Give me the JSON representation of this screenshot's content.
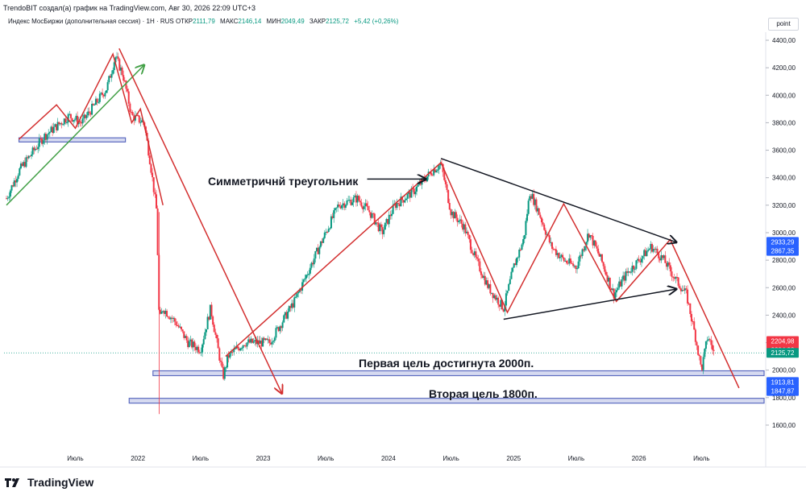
{
  "header": {
    "attribution": "TrendoBIT создал(а) график на TradingView.com, Авг 30, 2026 22:09 UTC+3"
  },
  "legend": {
    "symbol": "Индекс МосБиржи (дополнительная сессия) · 1Н · RUS",
    "open_label": "ОТКР",
    "open": "2111,79",
    "high_label": "МАКС",
    "high": "2146,14",
    "low_label": "МИН",
    "low": "2049,49",
    "close_label": "ЗАКР",
    "close": "2125,72",
    "change": "+5,42 (+0,26%)"
  },
  "scale_button": "point",
  "footer": {
    "logo_text": "TradingView"
  },
  "annotations": {
    "triangle": "Симметричнй треугольник",
    "target1": "Первая цель достигнута 2000п.",
    "target2": "Вторая цель 1800п."
  },
  "price_badges": [
    {
      "label": "2933,29",
      "value": 2933.29,
      "color": "#2962ff"
    },
    {
      "label": "2867,35",
      "value": 2867.35,
      "color": "#2962ff"
    },
    {
      "label": "2204,98",
      "value": 2212,
      "color": "#f23645"
    },
    {
      "label": "2204,98",
      "value": 2148,
      "color": "#f23645"
    },
    {
      "label": "2125,72",
      "value": 2125.72,
      "color": "#089981"
    },
    {
      "label": "1913,81",
      "value": 1913.81,
      "color": "#2962ff"
    },
    {
      "label": "1847,87",
      "value": 1847.87,
      "color": "#2962ff"
    }
  ],
  "colors": {
    "up": "#089981",
    "down": "#f23645",
    "trend_red": "#d32f2f",
    "trend_green": "#43a047",
    "zone_fill": "#c5cae9",
    "zone_border": "#5c6bc0"
  },
  "chart_data": {
    "type": "candlestick",
    "title": "Индекс МосБиржи (дополнительная сессия) · 1Н · RUS",
    "ylim": [
      1400,
      4520
    ],
    "y_ticks": [
      {
        "value": 4400,
        "label": "4400,00"
      },
      {
        "value": 4200,
        "label": "4200,00"
      },
      {
        "value": 4000,
        "label": "4000,00"
      },
      {
        "value": 3800,
        "label": "3800,00"
      },
      {
        "value": 3600,
        "label": "3600,00"
      },
      {
        "value": 3400,
        "label": "3400,00"
      },
      {
        "value": 3200,
        "label": "3200,00"
      },
      {
        "value": 3000,
        "label": "3000,00"
      },
      {
        "value": 2800,
        "label": "2800,00"
      },
      {
        "value": 2600,
        "label": "2600,00"
      },
      {
        "value": 2400,
        "label": "2400,00"
      },
      {
        "value": 2200,
        "label": "2200,00"
      },
      {
        "value": 2000,
        "label": "2000,00"
      },
      {
        "value": 1800,
        "label": "1800,00"
      },
      {
        "value": 1600,
        "label": "1600,00"
      }
    ],
    "x_ticks": [
      {
        "t": 2021.5,
        "label": "Июль"
      },
      {
        "t": 2022.0,
        "label": "2022"
      },
      {
        "t": 2022.5,
        "label": "Июль"
      },
      {
        "t": 2023.0,
        "label": "2023"
      },
      {
        "t": 2023.5,
        "label": "Июль"
      },
      {
        "t": 2024.0,
        "label": "2024"
      },
      {
        "t": 2024.5,
        "label": "Июль"
      },
      {
        "t": 2025.0,
        "label": "2025"
      },
      {
        "t": 2025.5,
        "label": "Июль"
      },
      {
        "t": 2026.0,
        "label": "2026"
      },
      {
        "t": 2026.5,
        "label": "Июль"
      }
    ],
    "price_path": [
      [
        2020.95,
        3250
      ],
      [
        2021.05,
        3450
      ],
      [
        2021.25,
        3700
      ],
      [
        2021.45,
        3850
      ],
      [
        2021.55,
        3800
      ],
      [
        2021.75,
        4050
      ],
      [
        2021.82,
        4280
      ],
      [
        2021.88,
        4150
      ],
      [
        2021.95,
        3850
      ],
      [
        2022.05,
        3800
      ],
      [
        2022.1,
        3500
      ],
      [
        2022.15,
        3150
      ],
      [
        2022.17,
        2350
      ],
      [
        2022.2,
        2450
      ],
      [
        2022.3,
        2350
      ],
      [
        2022.4,
        2200
      ],
      [
        2022.5,
        2150
      ],
      [
        2022.58,
        2450
      ],
      [
        2022.63,
        2200
      ],
      [
        2022.68,
        1950
      ],
      [
        2022.72,
        2100
      ],
      [
        2022.85,
        2200
      ],
      [
        2023.05,
        2200
      ],
      [
        2023.25,
        2500
      ],
      [
        2023.45,
        2900
      ],
      [
        2023.6,
        3200
      ],
      [
        2023.75,
        3250
      ],
      [
        2023.85,
        3150
      ],
      [
        2023.95,
        3000
      ],
      [
        2024.05,
        3200
      ],
      [
        2024.2,
        3300
      ],
      [
        2024.35,
        3450
      ],
      [
        2024.42,
        3500
      ],
      [
        2024.5,
        3150
      ],
      [
        2024.6,
        3050
      ],
      [
        2024.7,
        2800
      ],
      [
        2024.8,
        2600
      ],
      [
        2024.92,
        2450
      ],
      [
        2025.0,
        2750
      ],
      [
        2025.08,
        2950
      ],
      [
        2025.13,
        3300
      ],
      [
        2025.2,
        3150
      ],
      [
        2025.3,
        2900
      ],
      [
        2025.4,
        2800
      ],
      [
        2025.5,
        2750
      ],
      [
        2025.6,
        3000
      ],
      [
        2025.7,
        2800
      ],
      [
        2025.8,
        2550
      ],
      [
        2025.9,
        2700
      ],
      [
        2026.0,
        2800
      ],
      [
        2026.1,
        2900
      ],
      [
        2026.2,
        2800
      ],
      [
        2026.3,
        2650
      ],
      [
        2026.38,
        2550
      ],
      [
        2026.45,
        2250
      ],
      [
        2026.5,
        2000
      ],
      [
        2026.55,
        2250
      ],
      [
        2026.6,
        2130
      ]
    ],
    "zones": [
      {
        "t1": 2021.05,
        "t2": 2021.9,
        "low": 3660,
        "high": 3690
      },
      {
        "t1": 2022.12,
        "t2": 2027.0,
        "low": 1960,
        "high": 1995
      },
      {
        "t1": 2021.93,
        "t2": 2027.0,
        "low": 1760,
        "high": 1795
      }
    ],
    "lines": [
      {
        "color": "red",
        "arrow": false,
        "points": [
          [
            2021.05,
            3680
          ],
          [
            2021.35,
            3930
          ],
          [
            2021.5,
            3760
          ],
          [
            2021.8,
            4300
          ],
          [
            2021.95,
            3800
          ],
          [
            2022.02,
            3900
          ],
          [
            2022.2,
            3200
          ]
        ]
      },
      {
        "color": "green",
        "arrow": true,
        "points": [
          [
            2020.95,
            3200
          ],
          [
            2022.05,
            4220
          ]
        ]
      },
      {
        "color": "red",
        "arrow": true,
        "points": [
          [
            2021.85,
            4340
          ],
          [
            2023.15,
            1830
          ]
        ]
      },
      {
        "color": "red",
        "arrow": false,
        "points": [
          [
            2022.7,
            2100
          ],
          [
            2024.42,
            3510
          ],
          [
            2024.95,
            2420
          ],
          [
            2025.4,
            3210
          ],
          [
            2025.82,
            2500
          ],
          [
            2026.25,
            2950
          ],
          [
            2026.8,
            1870
          ]
        ]
      },
      {
        "color": "black",
        "arrow": true,
        "points": [
          [
            2024.42,
            3540
          ],
          [
            2026.3,
            2930
          ]
        ]
      },
      {
        "color": "black",
        "arrow": true,
        "points": [
          [
            2024.92,
            2370
          ],
          [
            2026.3,
            2590
          ]
        ]
      },
      {
        "color": "black",
        "arrow": true,
        "points": [
          [
            2023.83,
            3390
          ],
          [
            2024.3,
            3390
          ]
        ]
      }
    ],
    "hline": {
      "value": 2125.72
    }
  }
}
